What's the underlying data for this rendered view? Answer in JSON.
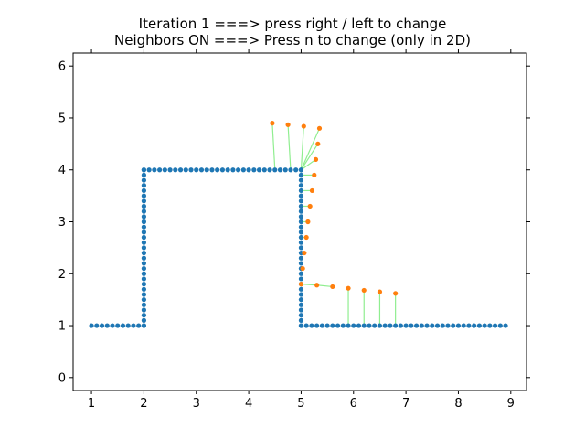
{
  "chart_data": {
    "type": "scatter",
    "title_lines": [
      "Iteration 1 ===> press right / left to change",
      "Neighbors ON ===> Press n to change (only in 2D)"
    ],
    "xlabel": "",
    "ylabel": "",
    "xlim": [
      0.65,
      9.3
    ],
    "ylim": [
      -0.25,
      6.25
    ],
    "xticks": [
      "1",
      "2",
      "3",
      "4",
      "5",
      "6",
      "7",
      "8",
      "9"
    ],
    "yticks": [
      "0",
      "1",
      "2",
      "3",
      "4",
      "5",
      "6"
    ],
    "grid": false,
    "colors": {
      "base": "#1f77b4",
      "moved": "#ff7f0e",
      "neighbor_line": "#90ee90"
    },
    "base_segments": [
      {
        "from": [
          1,
          1
        ],
        "to": [
          2,
          1
        ],
        "step": 0.1
      },
      {
        "from": [
          2,
          1
        ],
        "to": [
          2,
          4
        ],
        "step": 0.1
      },
      {
        "from": [
          2,
          4
        ],
        "to": [
          5,
          4
        ],
        "step": 0.1
      },
      {
        "from": [
          5,
          4
        ],
        "to": [
          5,
          1
        ],
        "step": 0.1
      },
      {
        "from": [
          5,
          1
        ],
        "to": [
          8.9,
          1
        ],
        "step": 0.1
      }
    ],
    "moved_points": [
      {
        "point": [
          4.45,
          4.9
        ],
        "anchor": [
          4.5,
          4.0
        ]
      },
      {
        "point": [
          4.75,
          4.87
        ],
        "anchor": [
          4.8,
          4.0
        ]
      },
      {
        "point": [
          5.05,
          4.84
        ],
        "anchor": [
          5.0,
          4.0
        ]
      },
      {
        "point": [
          5.35,
          4.8
        ],
        "anchor": [
          5.0,
          4.0
        ]
      },
      {
        "point": [
          5.32,
          4.5
        ],
        "anchor": [
          5.0,
          4.0
        ]
      },
      {
        "point": [
          5.28,
          4.2
        ],
        "anchor": [
          5.0,
          4.0
        ]
      },
      {
        "point": [
          5.25,
          3.9
        ],
        "anchor": [
          5.0,
          3.9
        ]
      },
      {
        "point": [
          5.21,
          3.6
        ],
        "anchor": [
          5.0,
          3.6
        ]
      },
      {
        "point": [
          5.17,
          3.3
        ],
        "anchor": [
          5.0,
          3.3
        ]
      },
      {
        "point": [
          5.13,
          3.0
        ],
        "anchor": [
          5.0,
          3.0
        ]
      },
      {
        "point": [
          5.1,
          2.7
        ],
        "anchor": [
          5.0,
          2.7
        ]
      },
      {
        "point": [
          5.06,
          2.4
        ],
        "anchor": [
          5.0,
          2.4
        ]
      },
      {
        "point": [
          5.03,
          2.1
        ],
        "anchor": [
          5.0,
          2.1
        ]
      },
      {
        "point": [
          5.0,
          1.8
        ],
        "anchor": [
          5.0,
          1.8
        ]
      },
      {
        "point": [
          5.3,
          1.78
        ],
        "anchor": [
          5.0,
          1.8
        ]
      },
      {
        "point": [
          5.6,
          1.75
        ],
        "anchor": [
          5.3,
          1.78
        ]
      },
      {
        "point": [
          5.9,
          1.72
        ],
        "anchor": [
          5.9,
          1.0
        ]
      },
      {
        "point": [
          6.2,
          1.68
        ],
        "anchor": [
          6.2,
          1.0
        ]
      },
      {
        "point": [
          6.5,
          1.65
        ],
        "anchor": [
          6.5,
          1.0
        ]
      },
      {
        "point": [
          6.8,
          1.62
        ],
        "anchor": [
          6.8,
          1.0
        ]
      }
    ]
  }
}
